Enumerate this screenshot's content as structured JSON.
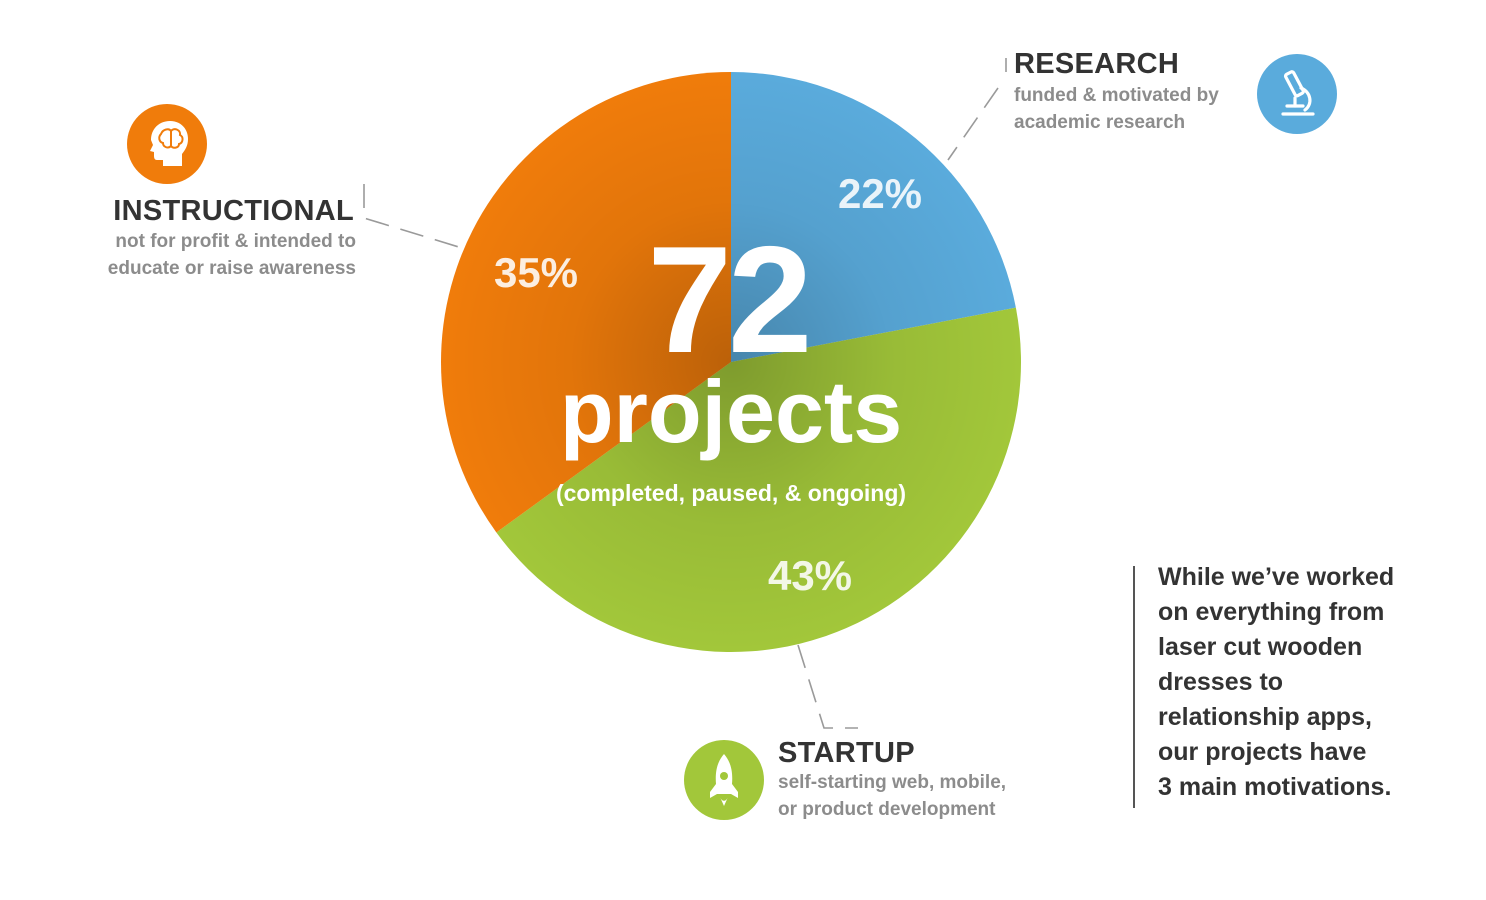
{
  "chart_data": {
    "type": "pie",
    "total": "72",
    "total_label": "projects",
    "total_sublabel": "(completed, paused, & ongoing)",
    "slices": [
      {
        "name": "RESEARCH",
        "value": 22,
        "label": "22%",
        "color": "#5aabdc"
      },
      {
        "name": "STARTUP",
        "value": 43,
        "label": "43%",
        "color": "#a2c73a"
      },
      {
        "name": "INSTRUCTIONAL",
        "value": 35,
        "label": "35%",
        "color": "#f07c0b"
      }
    ]
  },
  "categories": {
    "research": {
      "title": "RESEARCH",
      "desc": [
        "funded & motivated by",
        "academic research"
      ],
      "icon": "microscope-icon",
      "color": "#5aabdc"
    },
    "startup": {
      "title": "STARTUP",
      "desc": [
        "self-starting web, mobile,",
        "or product development"
      ],
      "icon": "rocket-icon",
      "color": "#a2c73a"
    },
    "instructional": {
      "title": "INSTRUCTIONAL",
      "desc": [
        "not for profit & intended to",
        "educate or raise awareness"
      ],
      "icon": "brain-head-icon",
      "color": "#f07c0b"
    }
  },
  "note": {
    "lines": [
      "While we’ve worked",
      "on everything from",
      "laser cut wooden",
      "dresses to",
      "relationship apps,",
      "our projects have",
      "3 main motivations."
    ]
  }
}
